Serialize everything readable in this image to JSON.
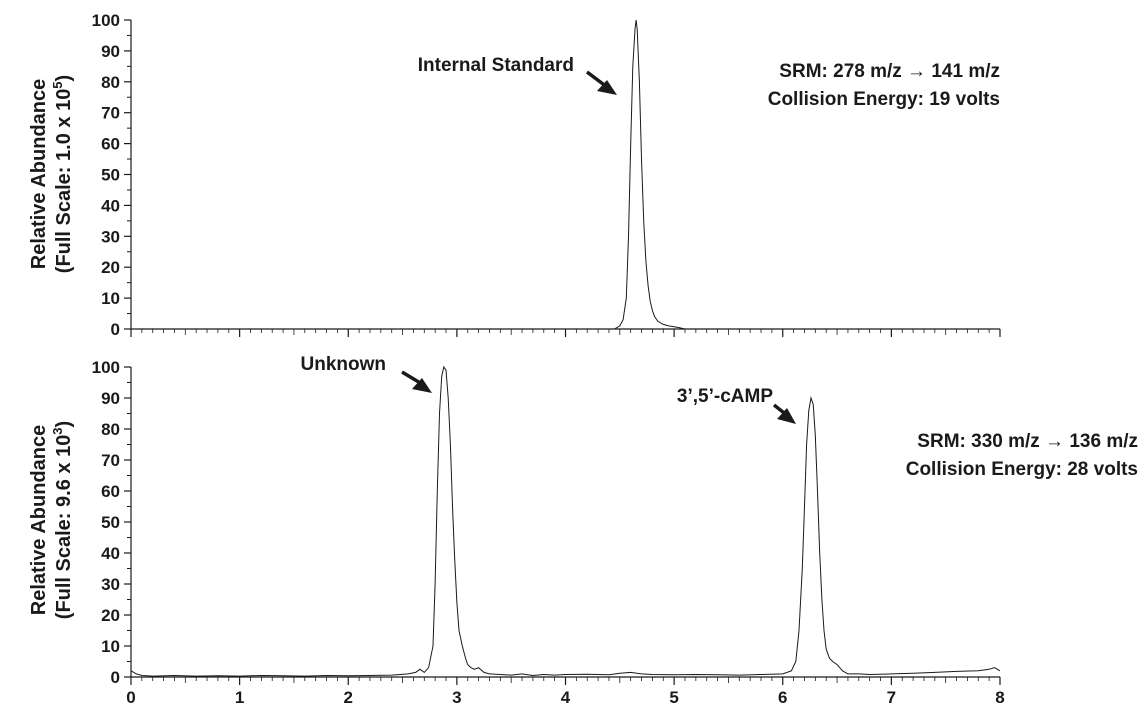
{
  "chart_data": [
    {
      "type": "line",
      "title": "",
      "ylabel_line1": "Relative Abundance",
      "ylabel_line2_prefix": "(Full Scale: 1.0 x 10",
      "ylabel_line2_exp": "5",
      "ylabel_line2_suffix": ")",
      "xlabel": "",
      "xlim": [
        0,
        8
      ],
      "ylim": [
        0,
        100
      ],
      "yticks": [
        "0",
        "10",
        "20",
        "30",
        "40",
        "50",
        "60",
        "70",
        "80",
        "90",
        "100"
      ],
      "annotation_srm": "SRM:  278 m/z → 141 m/z",
      "annotation_ce": "Collision Energy: 19 volts",
      "peaks": [
        {
          "label": "Internal Standard",
          "x": 4.65,
          "y": 100
        }
      ],
      "series": [
        {
          "x": [
            0,
            4.0,
            4.45,
            4.5,
            4.53,
            4.56,
            4.58,
            4.6,
            4.62,
            4.64,
            4.65,
            4.66,
            4.68,
            4.7,
            4.72,
            4.74,
            4.76,
            4.78,
            4.8,
            4.82,
            4.85,
            4.9,
            4.95,
            5.0,
            5.05,
            5.1,
            8.0
          ],
          "y": [
            0,
            0,
            0,
            1,
            3,
            10,
            30,
            60,
            85,
            97,
            100,
            97,
            80,
            55,
            35,
            22,
            14,
            9,
            6,
            4,
            2.5,
            1.5,
            1,
            0.7,
            0.4,
            0,
            0
          ]
        }
      ]
    },
    {
      "type": "line",
      "title": "",
      "ylabel_line1": "Relative Abundance",
      "ylabel_line2_prefix": "(Full Scale: 9.6 x 10",
      "ylabel_line2_exp": "3",
      "ylabel_line2_suffix": ")",
      "xlabel": "",
      "xlim": [
        0,
        8
      ],
      "ylim": [
        0,
        100
      ],
      "xticks": [
        "0",
        "1",
        "2",
        "3",
        "4",
        "5",
        "6",
        "7",
        "8"
      ],
      "yticks": [
        "0",
        "10",
        "20",
        "30",
        "40",
        "50",
        "60",
        "70",
        "80",
        "90",
        "100"
      ],
      "annotation_srm": "SRM:  330 m/z → 136 m/z",
      "annotation_ce": "Collision Energy: 28 volts",
      "peaks": [
        {
          "label": "Unknown",
          "x": 2.9,
          "y": 100
        },
        {
          "label": "3’,5’-cAMP",
          "x": 6.28,
          "y": 90
        }
      ],
      "series": [
        {
          "x": [
            0,
            0.05,
            0.1,
            0.2,
            0.4,
            0.6,
            0.8,
            1.0,
            1.2,
            1.4,
            1.6,
            1.8,
            2.0,
            2.2,
            2.4,
            2.55,
            2.62,
            2.66,
            2.7,
            2.74,
            2.78,
            2.8,
            2.82,
            2.84,
            2.86,
            2.88,
            2.9,
            2.92,
            2.94,
            2.96,
            2.98,
            3.0,
            3.02,
            3.05,
            3.08,
            3.1,
            3.13,
            3.16,
            3.2,
            3.25,
            3.3,
            3.4,
            3.5,
            3.6,
            3.7,
            3.8,
            3.9,
            4.0,
            4.2,
            4.4,
            4.5,
            4.6,
            4.7,
            4.8,
            5.0,
            5.2,
            5.4,
            5.6,
            5.8,
            6.0,
            6.08,
            6.12,
            6.15,
            6.18,
            6.2,
            6.22,
            6.24,
            6.26,
            6.28,
            6.3,
            6.32,
            6.34,
            6.36,
            6.38,
            6.4,
            6.43,
            6.46,
            6.5,
            6.55,
            6.6,
            6.7,
            6.8,
            7.0,
            7.2,
            7.4,
            7.6,
            7.8,
            7.9,
            7.95,
            8.0
          ],
          "y": [
            2,
            1,
            0.5,
            0.3,
            0.5,
            0.3,
            0.4,
            0.3,
            0.5,
            0.4,
            0.3,
            0.5,
            0.4,
            0.5,
            0.6,
            1,
            1.5,
            2.5,
            1.5,
            3,
            10,
            30,
            60,
            85,
            97,
            100,
            99,
            90,
            75,
            55,
            38,
            24,
            15,
            10,
            6,
            4,
            3,
            2.5,
            3,
            1.5,
            1,
            0.8,
            0.6,
            1,
            0.5,
            0.8,
            0.6,
            0.8,
            0.9,
            0.7,
            1.2,
            1.5,
            1,
            0.8,
            0.7,
            0.8,
            0.7,
            0.6,
            0.8,
            1,
            2,
            5,
            15,
            35,
            55,
            75,
            86,
            90,
            88,
            78,
            60,
            40,
            25,
            15,
            9,
            6,
            5,
            4,
            2,
            1,
            1,
            0.8,
            1,
            1.2,
            1.5,
            1.8,
            2,
            2.5,
            3,
            2
          ]
        }
      ]
    }
  ]
}
